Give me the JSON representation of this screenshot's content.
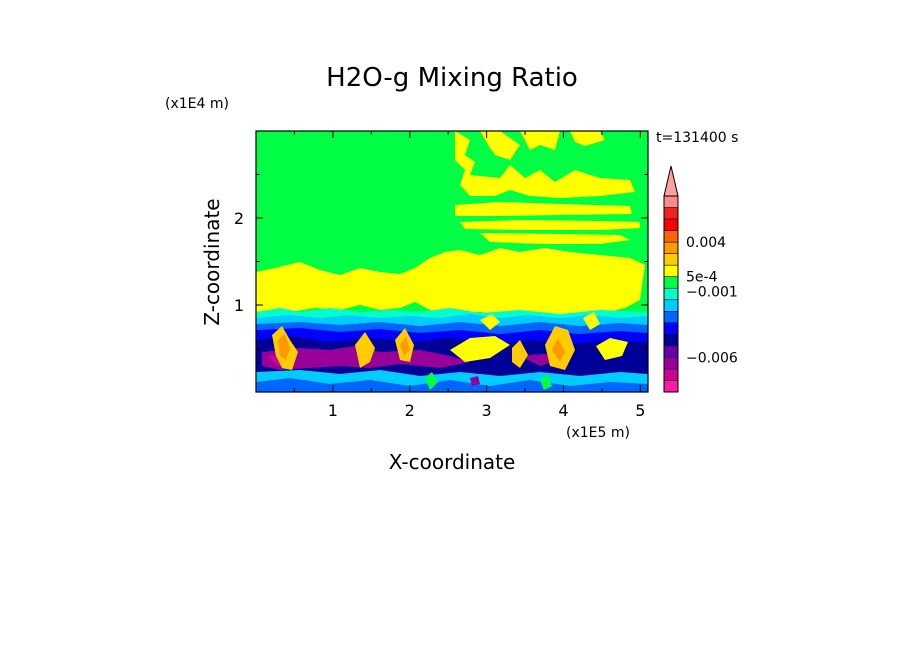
{
  "chart_data": {
    "type": "heatmap",
    "title": "H2O-g Mixing Ratio",
    "xlabel": "X-coordinate",
    "ylabel": "Z-coordinate",
    "x_scale_label": "(x1E5 m)",
    "y_scale_label": "(x1E4 m)",
    "time_label": "t=131400 s",
    "xlim": [
      0,
      5.1
    ],
    "ylim": [
      0,
      3.0
    ],
    "x_ticks": [
      {
        "value": 1,
        "label": "1"
      },
      {
        "value": 2,
        "label": "2"
      },
      {
        "value": 3,
        "label": "3"
      },
      {
        "value": 4,
        "label": "4"
      },
      {
        "value": 5,
        "label": "5"
      }
    ],
    "y_ticks": [
      {
        "value": 1,
        "label": "1"
      },
      {
        "value": 2,
        "label": "2"
      }
    ],
    "colorbar": {
      "levels": [
        "#ff1aa8",
        "#cc0099",
        "#990099",
        "#6600aa",
        "#000099",
        "#0000ff",
        "#0066ff",
        "#00ccff",
        "#00ffcc",
        "#00ff44",
        "#ffff00",
        "#ffcc00",
        "#ff9900",
        "#ff6600",
        "#ff0000",
        "#ee2222",
        "#ff8888"
      ],
      "extend_top": true,
      "extend_color": "#ffa0a0",
      "labels": [
        {
          "level": 13.0,
          "text": "0.004"
        },
        {
          "level": 10.0,
          "text": "5e-4"
        },
        {
          "level": 8.7,
          "text": "−0.001"
        },
        {
          "level": 3.0,
          "text": "−0.006"
        }
      ]
    },
    "colors": {
      "green": "#00ff44",
      "yellow": "#ffff00",
      "cyan": "#00ccff",
      "aqua": "#00ffcc",
      "lightblue": "#0066ff",
      "blue": "#0000ff",
      "navy": "#000099",
      "purple": "#990099",
      "magenta": "#cc0099",
      "orange": "#ff9900",
      "gold": "#ffcc00",
      "red": "#ff6600"
    }
  }
}
